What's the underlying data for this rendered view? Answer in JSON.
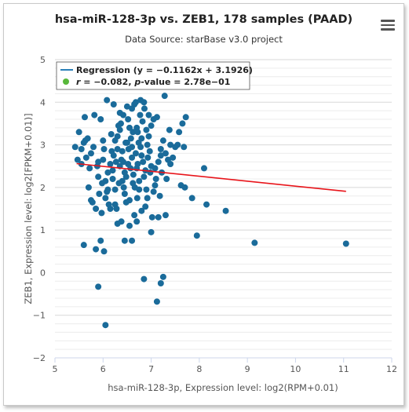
{
  "header": {
    "title": "hsa-miR-128-3p vs. ZEB1, 178 samples (PAAD)",
    "subtitle": "Data Source: starBase v3.0 project"
  },
  "colors": {
    "points": "#1a6b9a",
    "regression": "#e8141a",
    "legend_line": "#2a7fb8",
    "legend_dot": "#58b83b"
  },
  "icons": {
    "menu": "hamburger-menu-icon"
  },
  "legend": {
    "regression": "Regression (y = −0.1162x + 3.1926)",
    "correlation_r_label": "r",
    "correlation_r_value": " = −0.082, ",
    "correlation_p_label": "p",
    "correlation_p_value": "-value = 2.78e−01"
  },
  "chart_data": {
    "type": "scatter",
    "title": "hsa-miR-128-3p vs. ZEB1, 178 samples (PAAD)",
    "subtitle": "Data Source: starBase v3.0 project",
    "xlabel": "hsa-miR-128-3p, Expression level: log2(RPM+0.01)",
    "ylabel": "ZEB1, Expression level: log2[FPKM+0.01)]",
    "xlim": [
      5,
      12
    ],
    "ylim": [
      -2,
      5
    ],
    "xticks": [
      "5",
      "6",
      "7",
      "8",
      "9",
      "10",
      "11",
      "12"
    ],
    "yticks": [
      "5",
      "4",
      "3",
      "2",
      "1",
      "0",
      "−1",
      "−2"
    ],
    "yticks_values": [
      5,
      4,
      3,
      2,
      1,
      0,
      -1,
      -2
    ],
    "xticks_values": [
      5,
      6,
      7,
      8,
      9,
      10,
      11,
      12
    ],
    "grid": true,
    "legend_position": "top-left",
    "regression": {
      "slope": -0.1162,
      "intercept": 3.1926,
      "x_start": 5.45,
      "x_end": 11.05
    },
    "points": [
      [
        5.42,
        2.95
      ],
      [
        5.47,
        2.65
      ],
      [
        5.5,
        3.3
      ],
      [
        5.55,
        2.55
      ],
      [
        5.6,
        3.05
      ],
      [
        5.63,
        3.1
      ],
      [
        5.62,
        3.65
      ],
      [
        5.65,
        2.7
      ],
      [
        5.7,
        2.0
      ],
      [
        5.72,
        2.45
      ],
      [
        5.75,
        1.7
      ],
      [
        5.78,
        1.65
      ],
      [
        5.8,
        2.95
      ],
      [
        5.82,
        3.7
      ],
      [
        5.85,
        1.5
      ],
      [
        5.88,
        2.5
      ],
      [
        5.9,
        2.25
      ],
      [
        5.92,
        1.85
      ],
      [
        5.95,
        3.6
      ],
      [
        5.97,
        1.4
      ],
      [
        6.0,
        2.65
      ],
      [
        6.02,
        2.9
      ],
      [
        6.05,
        2.15
      ],
      [
        6.08,
        1.9
      ],
      [
        6.1,
        1.95
      ],
      [
        6.12,
        1.6
      ],
      [
        6.15,
        2.55
      ],
      [
        6.17,
        3.25
      ],
      [
        6.2,
        2.4
      ],
      [
        6.22,
        2.75
      ],
      [
        6.25,
        1.95
      ],
      [
        6.27,
        2.6
      ],
      [
        6.28,
        1.5
      ],
      [
        6.3,
        3.2
      ],
      [
        6.32,
        3.45
      ],
      [
        6.33,
        2.1
      ],
      [
        6.35,
        3.75
      ],
      [
        6.37,
        3.5
      ],
      [
        6.38,
        1.2
      ],
      [
        6.4,
        2.85
      ],
      [
        6.42,
        2.6
      ],
      [
        6.43,
        2.0
      ],
      [
        6.45,
        1.85
      ],
      [
        6.47,
        3.05
      ],
      [
        6.48,
        2.25
      ],
      [
        6.5,
        3.9
      ],
      [
        6.52,
        3.6
      ],
      [
        6.53,
        2.9
      ],
      [
        6.55,
        1.7
      ],
      [
        6.57,
        2.45
      ],
      [
        6.58,
        3.15
      ],
      [
        6.6,
        2.7
      ],
      [
        6.62,
        3.3
      ],
      [
        6.63,
        2.3
      ],
      [
        6.65,
        3.95
      ],
      [
        6.66,
        2.0
      ],
      [
        6.68,
        2.8
      ],
      [
        6.7,
        3.4
      ],
      [
        6.71,
        1.75
      ],
      [
        6.72,
        2.55
      ],
      [
        6.74,
        3.05
      ],
      [
        6.75,
        2.15
      ],
      [
        6.77,
        3.7
      ],
      [
        6.78,
        2.95
      ],
      [
        6.8,
        1.45
      ],
      [
        6.82,
        3.55
      ],
      [
        6.83,
        2.6
      ],
      [
        6.85,
        2.25
      ],
      [
        6.86,
        3.85
      ],
      [
        6.88,
        2.4
      ],
      [
        6.9,
        1.95
      ],
      [
        6.92,
        3.0
      ],
      [
        6.93,
        2.7
      ],
      [
        6.95,
        3.2
      ],
      [
        6.97,
        2.85
      ],
      [
        7.0,
        2.5
      ],
      [
        7.02,
        1.3
      ],
      [
        7.05,
        3.6
      ],
      [
        7.08,
        2.45
      ],
      [
        7.1,
        2.2
      ],
      [
        7.12,
        3.65
      ],
      [
        7.15,
        2.6
      ],
      [
        7.18,
        1.8
      ],
      [
        7.2,
        2.9
      ],
      [
        7.22,
        2.35
      ],
      [
        7.25,
        3.1
      ],
      [
        7.28,
        4.15
      ],
      [
        7.3,
        2.8
      ],
      [
        7.32,
        2.2
      ],
      [
        7.35,
        2.65
      ],
      [
        7.38,
        3.35
      ],
      [
        7.4,
        3.0
      ],
      [
        7.45,
        2.7
      ],
      [
        7.5,
        2.95
      ],
      [
        7.55,
        3.0
      ],
      [
        7.58,
        3.3
      ],
      [
        7.62,
        2.05
      ],
      [
        7.65,
        3.5
      ],
      [
        7.68,
        2.95
      ],
      [
        7.7,
        2.0
      ],
      [
        7.72,
        3.65
      ],
      [
        7.85,
        1.75
      ],
      [
        8.1,
        2.45
      ],
      [
        8.15,
        1.6
      ],
      [
        6.08,
        4.05
      ],
      [
        6.22,
        3.95
      ],
      [
        6.68,
        4.0
      ],
      [
        6.78,
        4.05
      ],
      [
        6.85,
        4.0
      ],
      [
        6.95,
        3.7
      ],
      [
        6.6,
        3.85
      ],
      [
        6.42,
        3.7
      ],
      [
        6.35,
        3.35
      ],
      [
        6.55,
        3.4
      ],
      [
        6.72,
        3.3
      ],
      [
        6.9,
        3.35
      ],
      [
        6.5,
        3.05
      ],
      [
        6.3,
        2.9
      ],
      [
        6.45,
        2.35
      ],
      [
        6.62,
        2.1
      ],
      [
        6.75,
        1.95
      ],
      [
        6.88,
        1.55
      ],
      [
        6.65,
        1.35
      ],
      [
        6.7,
        1.2
      ],
      [
        6.55,
        1.1
      ],
      [
        6.3,
        1.15
      ],
      [
        6.15,
        1.5
      ],
      [
        6.05,
        1.75
      ],
      [
        6.25,
        1.6
      ],
      [
        6.48,
        1.65
      ],
      [
        6.92,
        1.75
      ],
      [
        7.05,
        1.9
      ],
      [
        7.15,
        1.3
      ],
      [
        7.3,
        1.35
      ],
      [
        6.8,
        2.75
      ],
      [
        6.98,
        2.35
      ],
      [
        6.52,
        2.55
      ],
      [
        6.4,
        2.15
      ],
      [
        6.2,
        2.2
      ],
      [
        6.1,
        2.35
      ],
      [
        5.98,
        2.1
      ],
      [
        5.9,
        2.6
      ],
      [
        5.75,
        2.8
      ],
      [
        5.68,
        3.15
      ],
      [
        6.0,
        3.1
      ],
      [
        6.18,
        2.85
      ],
      [
        6.38,
        2.65
      ],
      [
        6.6,
        2.95
      ],
      [
        6.8,
        3.15
      ],
      [
        7.0,
        3.45
      ],
      [
        7.2,
        2.75
      ],
      [
        7.4,
        2.55
      ],
      [
        7.0,
        0.95
      ],
      [
        6.45,
        0.75
      ],
      [
        5.95,
        0.75
      ],
      [
        5.6,
        0.65
      ],
      [
        5.85,
        0.55
      ],
      [
        6.02,
        0.5
      ],
      [
        6.85,
        -0.15
      ],
      [
        7.25,
        -0.1
      ],
      [
        7.2,
        -0.25
      ],
      [
        5.9,
        -0.33
      ],
      [
        7.12,
        -0.68
      ],
      [
        6.05,
        -1.23
      ],
      [
        6.6,
        0.75
      ],
      [
        7.95,
        0.87
      ],
      [
        8.55,
        1.45
      ],
      [
        9.15,
        0.7
      ],
      [
        11.05,
        0.68
      ],
      [
        5.55,
        2.9
      ],
      [
        6.25,
        3.1
      ],
      [
        6.7,
        2.45
      ],
      [
        7.08,
        2.05
      ],
      [
        6.35,
        2.5
      ]
    ]
  }
}
